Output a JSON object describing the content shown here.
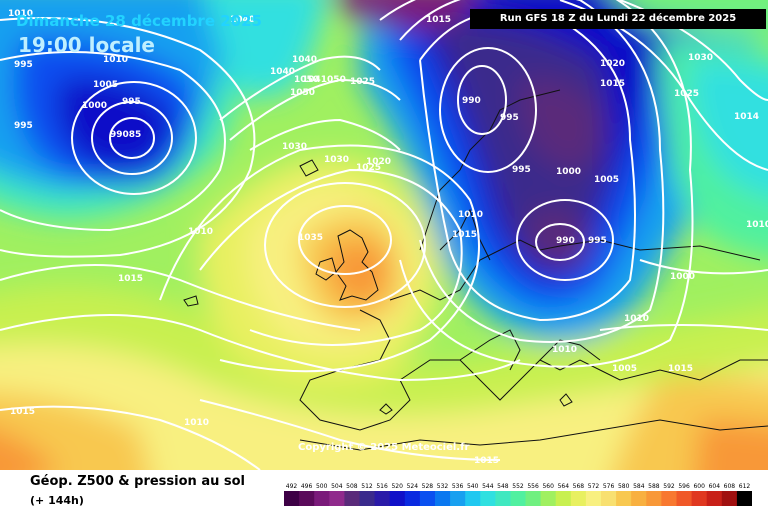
{
  "header": {
    "day": "Dimanche 28 décembre 2025",
    "time": "19:00 locale",
    "run": "Run GFS 18 Z du Lundi 22 décembre 2025"
  },
  "copyright": "Copyright © 2025 Meteociel.fr",
  "footer": {
    "title": "Géop. Z500 & pression au sol",
    "subtitle": "(+ 144h)"
  },
  "colors": {
    "contour": "#ffffff",
    "coast": "#111111"
  },
  "pressure_labels": [
    {
      "text": "995"
    },
    {
      "text": "1010"
    },
    {
      "text": "1010"
    },
    {
      "text": "1005"
    },
    {
      "text": "1000"
    },
    {
      "text": "995"
    },
    {
      "text": "995"
    },
    {
      "text": "99085"
    },
    {
      "text": "1040"
    },
    {
      "text": "1040"
    },
    {
      "text": "1040"
    },
    {
      "text": "1050"
    },
    {
      "text": "1041050"
    },
    {
      "text": "1050"
    },
    {
      "text": "1025"
    },
    {
      "text": "1030"
    },
    {
      "text": "1030"
    },
    {
      "text": "1020"
    },
    {
      "text": "1025"
    },
    {
      "text": "1015"
    },
    {
      "text": "1035"
    },
    {
      "text": "990"
    },
    {
      "text": "995"
    },
    {
      "text": "995"
    },
    {
      "text": "1000"
    },
    {
      "text": "1005"
    },
    {
      "text": "1020"
    },
    {
      "text": "1015"
    },
    {
      "text": "1030"
    },
    {
      "text": "1025"
    },
    {
      "text": "1014"
    },
    {
      "text": "1010"
    },
    {
      "text": "1015"
    },
    {
      "text": "990"
    },
    {
      "text": "995"
    },
    {
      "text": "1010"
    },
    {
      "text": "1015"
    },
    {
      "text": "1010"
    },
    {
      "text": "1000"
    },
    {
      "text": "1010"
    },
    {
      "text": "1010"
    },
    {
      "text": "1005"
    },
    {
      "text": "1015"
    },
    {
      "text": "1015"
    },
    {
      "text": "1010"
    },
    {
      "text": "1015"
    },
    {
      "text": "1035"
    },
    {
      "text": "1015"
    }
  ],
  "legend": {
    "unit_note": "",
    "values": [
      "492",
      "496",
      "500",
      "504",
      "508",
      "512",
      "516",
      "520",
      "524",
      "528",
      "532",
      "536",
      "540",
      "544",
      "548",
      "552",
      "556",
      "560",
      "564",
      "568",
      "572",
      "576",
      "580",
      "584",
      "588",
      "592",
      "596",
      "600",
      "604",
      "608",
      "612"
    ],
    "colors": [
      "#3d0045",
      "#5a0a5a",
      "#7a1a7a",
      "#902a8c",
      "#5a2a7a",
      "#3a2a8c",
      "#2a1aa8",
      "#1010c8",
      "#0a2ae0",
      "#0a50f0",
      "#0a78f0",
      "#18a0f0",
      "#20c8f0",
      "#30e0e0",
      "#40e8c0",
      "#50f0a0",
      "#70f080",
      "#a0f060",
      "#c8f050",
      "#e8f060",
      "#f8f080",
      "#f8e070",
      "#f8c850",
      "#f8b040",
      "#f89838",
      "#f87830",
      "#f05828",
      "#e03820",
      "#c82018",
      "#a01010",
      "#000000"
    ]
  }
}
